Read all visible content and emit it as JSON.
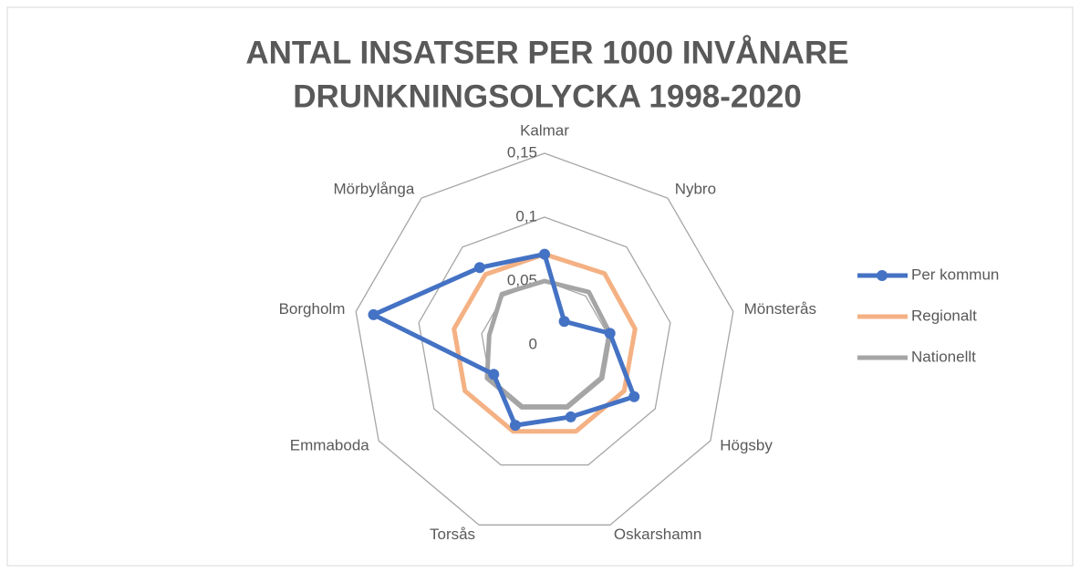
{
  "chart_data": {
    "type": "radar",
    "title": [
      "ANTAL INSATSER PER 1000 INVÅNARE",
      "DRUNKNINGSOLYCKA 1998-2020"
    ],
    "categories": [
      "Kalmar",
      "Nybro",
      "Mönsterås",
      "Högsby",
      "Oskarshamn",
      "Torsås",
      "Emmaboda",
      "Borgholm",
      "Mörbylånga"
    ],
    "series": [
      {
        "name": "Per kommun",
        "color": "#4472c4",
        "marker": true,
        "values": [
          0.071,
          0.024,
          0.052,
          0.081,
          0.06,
          0.067,
          0.046,
          0.136,
          0.079
        ]
      },
      {
        "name": "Regionalt",
        "color": "#f4b183",
        "marker": false,
        "values": [
          0.071,
          0.073,
          0.072,
          0.072,
          0.072,
          0.072,
          0.072,
          0.072,
          0.072
        ]
      },
      {
        "name": "Nationellt",
        "color": "#a5a5a5",
        "marker": false,
        "values": [
          0.05,
          0.054,
          0.052,
          0.052,
          0.052,
          0.052,
          0.052,
          0.044,
          0.052
        ]
      }
    ],
    "ylim": [
      0,
      0.15
    ],
    "yticks": [
      0,
      {
        "value": 0.05,
        "label": "0,05"
      },
      {
        "value": 0.1,
        "label": "0,1"
      },
      {
        "value": 0.15,
        "label": "0,15"
      }
    ],
    "grid": true,
    "legend": "right"
  }
}
